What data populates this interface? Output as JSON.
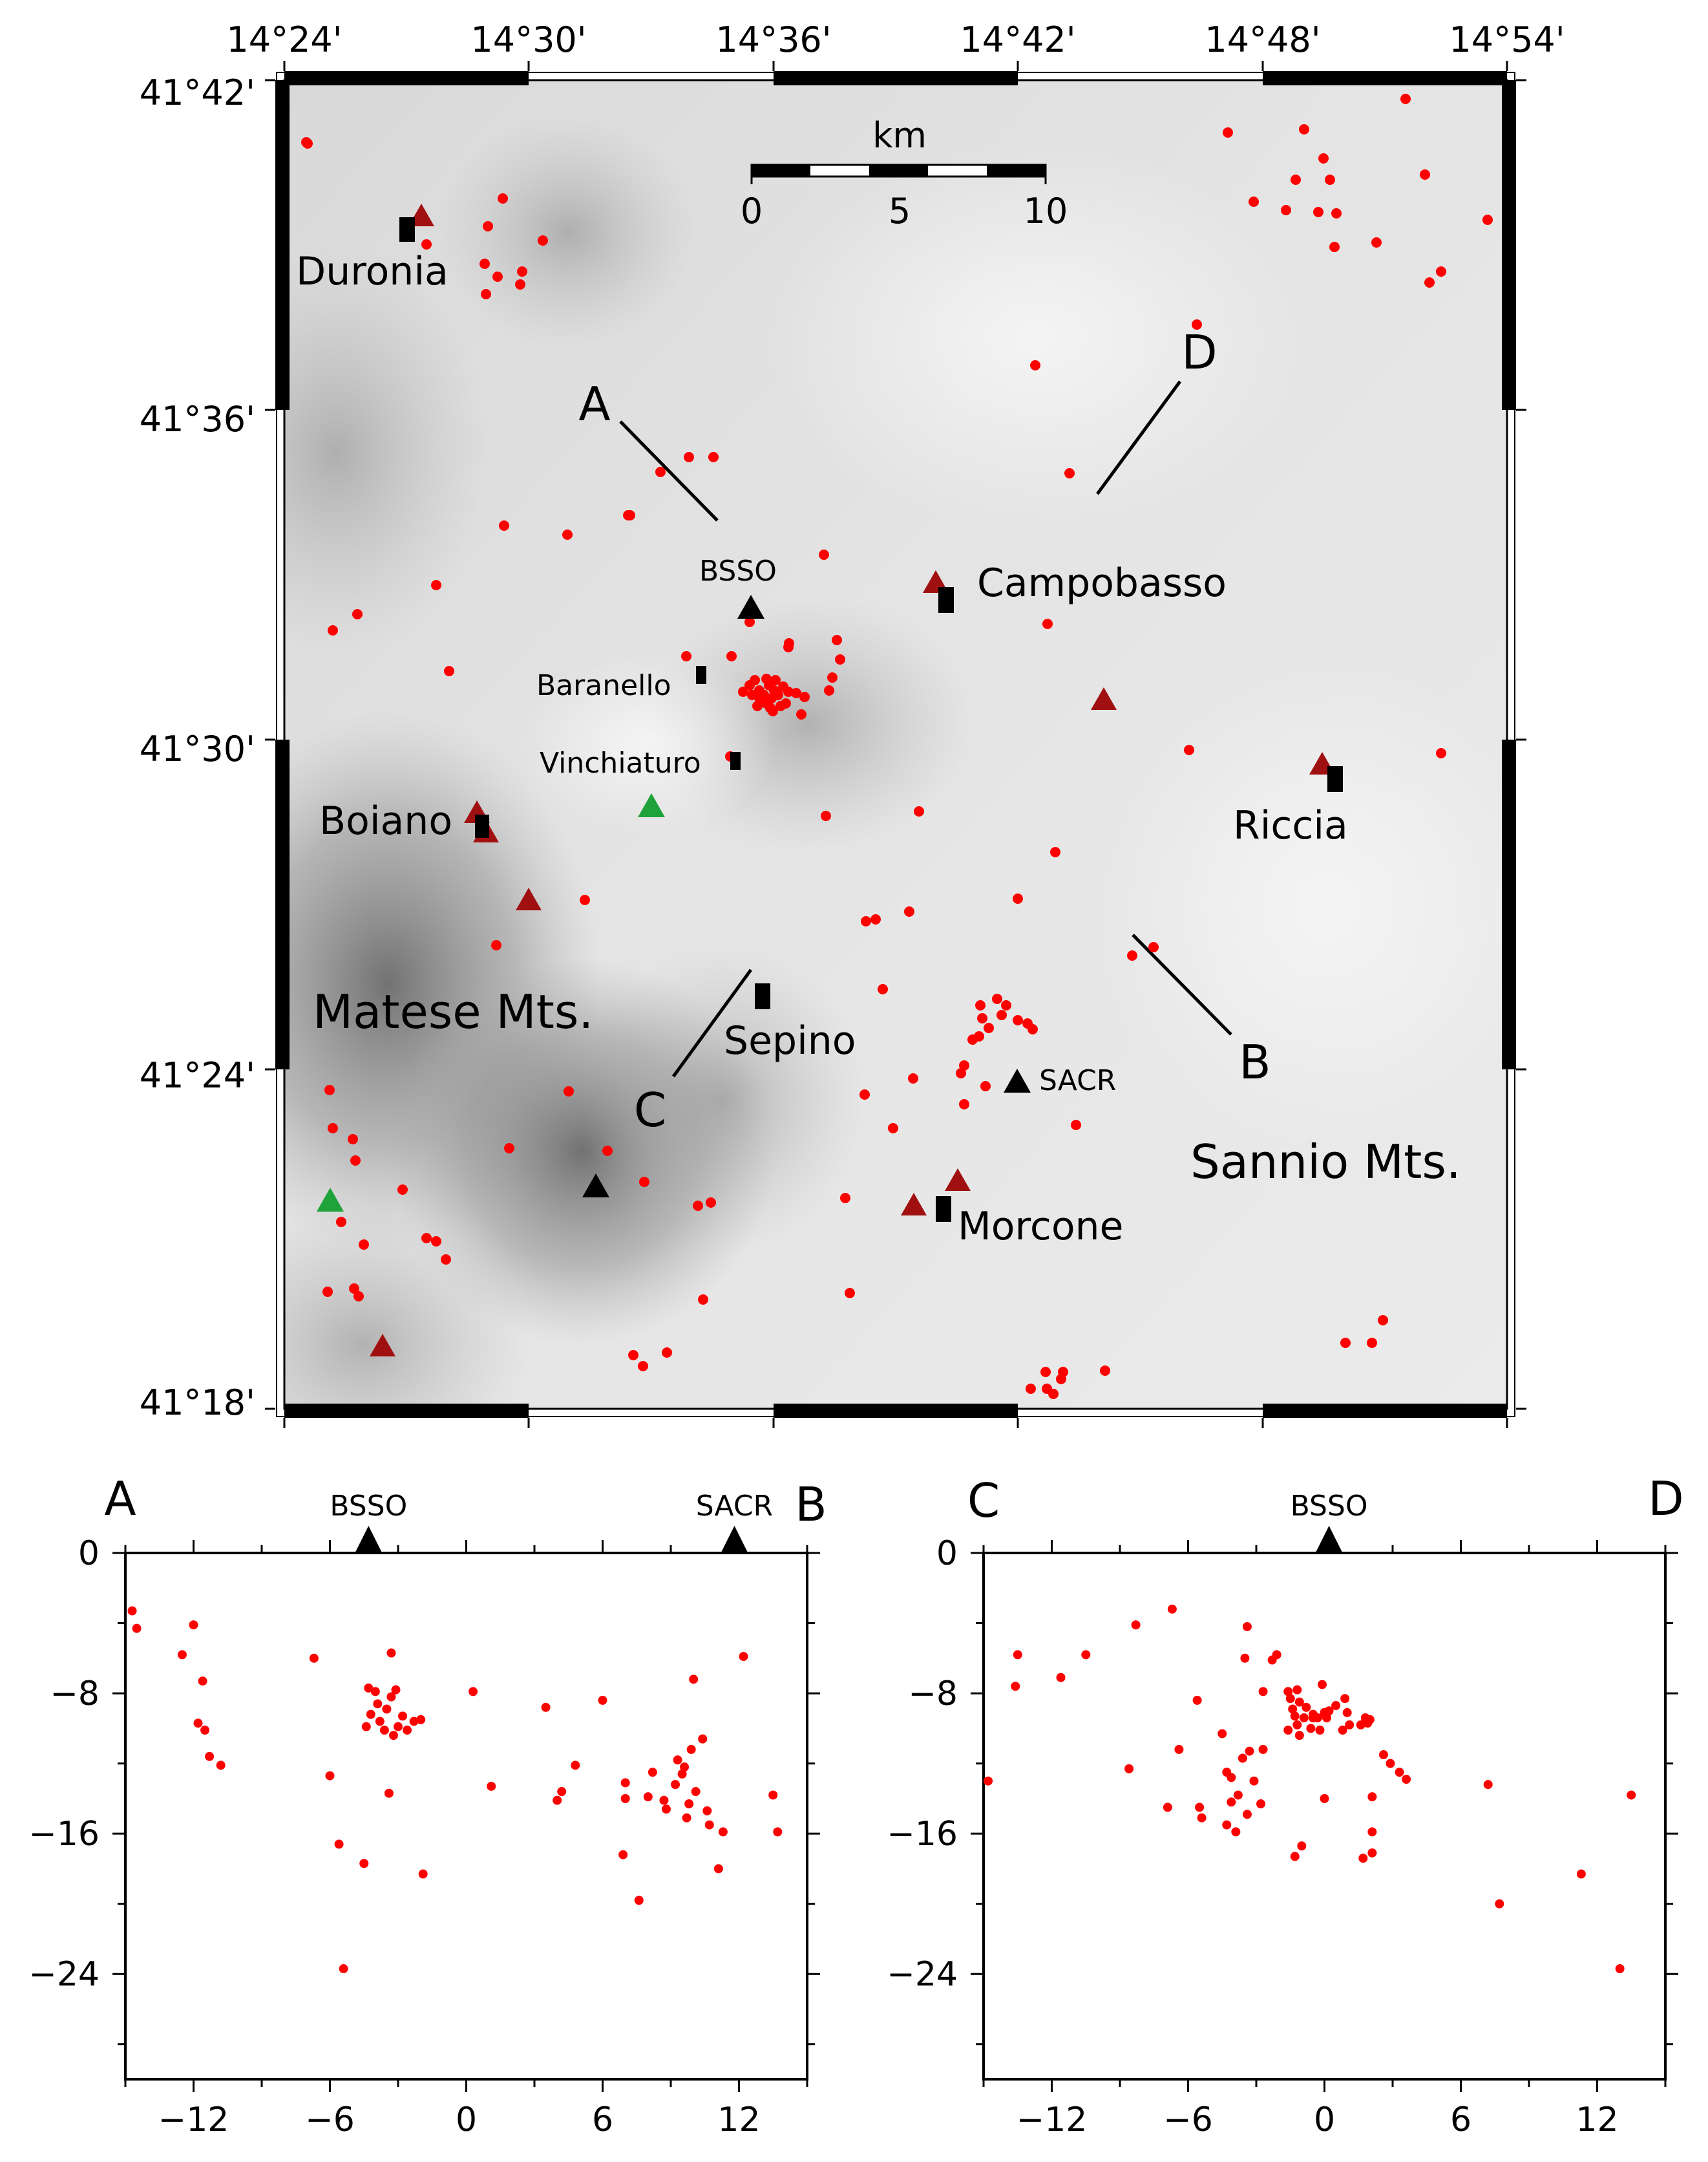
{
  "map": {
    "lon_labels": [
      "14°24'",
      "14°30'",
      "14°36'",
      "14°42'",
      "14°48'",
      "14°54'"
    ],
    "lat_labels": [
      "41°42'",
      "41°36'",
      "41°30'",
      "41°24'",
      "41°18'"
    ],
    "scalebar": {
      "unit": "km",
      "ticks": [
        "0",
        "5",
        "10"
      ]
    },
    "towns": [
      "Duronia",
      "Campobasso",
      "Baranello",
      "Vinchiaturo",
      "Boiano",
      "Riccia",
      "Sepino",
      "Morcone"
    ],
    "regions": [
      "Matese Mts.",
      "Sannio Mts."
    ],
    "stations": [
      "BSSO",
      "SACR"
    ],
    "profile_endpoints": [
      "A",
      "B",
      "C",
      "D"
    ],
    "colors": {
      "epicenter": "#ff0000",
      "station_black": "#000000",
      "station_red": "#a01010",
      "station_green": "#1fa23a",
      "terrain_low": "#f0f0f0",
      "terrain_high": "#5a5a5a"
    }
  },
  "chart_data": [
    {
      "type": "scatter",
      "name": "A-B cross-section",
      "end_labels": [
        "A",
        "B"
      ],
      "stations": [
        {
          "label": "BSSO",
          "x": -4.3
        },
        {
          "label": "SACR",
          "x": 11.8
        }
      ],
      "xlim": [
        -15,
        15
      ],
      "ylim": [
        -30,
        0
      ],
      "xticks": [
        "−12",
        "−6",
        "0",
        "6",
        "12"
      ],
      "yticks": [
        "0",
        "−8",
        "−16",
        "−24"
      ],
      "points": [
        [
          -14.7,
          -3.3
        ],
        [
          -14.5,
          -4.3
        ],
        [
          -12.5,
          -5.8
        ],
        [
          -12.0,
          -4.1
        ],
        [
          -11.8,
          -9.7
        ],
        [
          -11.6,
          -7.3
        ],
        [
          -11.5,
          -10.1
        ],
        [
          -11.3,
          -11.6
        ],
        [
          -10.8,
          -12.1
        ],
        [
          -6.7,
          -6.0
        ],
        [
          -6.0,
          -12.7
        ],
        [
          -5.6,
          -16.6
        ],
        [
          -5.4,
          -23.7
        ],
        [
          -4.5,
          -17.7
        ],
        [
          -4.4,
          -9.9
        ],
        [
          -4.3,
          -7.7
        ],
        [
          -4.2,
          -9.2
        ],
        [
          -4.0,
          -7.9
        ],
        [
          -3.9,
          -8.6
        ],
        [
          -3.8,
          -9.6
        ],
        [
          -3.6,
          -10.1
        ],
        [
          -3.5,
          -8.9
        ],
        [
          -3.4,
          -13.7
        ],
        [
          -3.3,
          -8.2
        ],
        [
          -3.2,
          -10.4
        ],
        [
          -3.1,
          -7.8
        ],
        [
          -3.0,
          -9.9
        ],
        [
          -2.8,
          -9.3
        ],
        [
          -2.6,
          -10.1
        ],
        [
          -2.3,
          -9.6
        ],
        [
          -2.0,
          -9.5
        ],
        [
          -1.9,
          -18.3
        ],
        [
          -3.3,
          -5.7
        ],
        [
          0.3,
          -7.9
        ],
        [
          1.1,
          -13.3
        ],
        [
          3.5,
          -8.8
        ],
        [
          4.0,
          -14.1
        ],
        [
          4.2,
          -13.6
        ],
        [
          4.8,
          -12.1
        ],
        [
          6.0,
          -8.4
        ],
        [
          6.9,
          -17.2
        ],
        [
          7.0,
          -13.1
        ],
        [
          7.0,
          -14.0
        ],
        [
          7.6,
          -19.8
        ],
        [
          8.0,
          -13.9
        ],
        [
          8.2,
          -12.5
        ],
        [
          8.7,
          -14.1
        ],
        [
          8.8,
          -14.6
        ],
        [
          9.2,
          -13.2
        ],
        [
          9.3,
          -11.8
        ],
        [
          9.5,
          -12.6
        ],
        [
          9.6,
          -12.2
        ],
        [
          9.7,
          -15.1
        ],
        [
          9.8,
          -14.3
        ],
        [
          9.9,
          -11.2
        ],
        [
          10.0,
          -7.2
        ],
        [
          10.1,
          -13.6
        ],
        [
          10.4,
          -10.6
        ],
        [
          10.6,
          -14.7
        ],
        [
          10.7,
          -15.5
        ],
        [
          11.1,
          -18.0
        ],
        [
          11.3,
          -15.9
        ],
        [
          12.2,
          -5.9
        ],
        [
          13.5,
          -13.8
        ],
        [
          13.7,
          -15.9
        ]
      ]
    },
    {
      "type": "scatter",
      "name": "C-D cross-section",
      "end_labels": [
        "C",
        "D"
      ],
      "stations": [
        {
          "label": "BSSO",
          "x": 0.2
        }
      ],
      "xlim": [
        -15,
        15
      ],
      "ylim": [
        -30,
        0
      ],
      "xticks": [
        "−12",
        "−6",
        "0",
        "6",
        "12"
      ],
      "yticks": [
        "0",
        "−8",
        "−16",
        "−24"
      ],
      "points": [
        [
          -14.8,
          -13.0
        ],
        [
          -13.6,
          -7.6
        ],
        [
          -13.5,
          -5.8
        ],
        [
          -11.6,
          -7.1
        ],
        [
          -10.5,
          -5.8
        ],
        [
          -8.6,
          -12.3
        ],
        [
          -8.3,
          -4.1
        ],
        [
          -6.9,
          -14.5
        ],
        [
          -6.7,
          -3.2
        ],
        [
          -6.4,
          -11.2
        ],
        [
          -5.6,
          -8.4
        ],
        [
          -5.5,
          -14.5
        ],
        [
          -5.4,
          -15.1
        ],
        [
          -4.5,
          -10.3
        ],
        [
          -4.3,
          -15.5
        ],
        [
          -4.3,
          -12.5
        ],
        [
          -4.1,
          -14.2
        ],
        [
          -4.1,
          -12.8
        ],
        [
          -3.9,
          -15.9
        ],
        [
          -3.8,
          -13.8
        ],
        [
          -3.6,
          -11.7
        ],
        [
          -3.5,
          -6.0
        ],
        [
          -3.4,
          -4.2
        ],
        [
          -3.4,
          -14.9
        ],
        [
          -3.3,
          -11.3
        ],
        [
          -3.1,
          -13.0
        ],
        [
          -2.8,
          -14.3
        ],
        [
          -2.7,
          -11.2
        ],
        [
          -2.7,
          -7.9
        ],
        [
          -2.3,
          -6.1
        ],
        [
          -2.1,
          -5.8
        ],
        [
          -1.6,
          -7.9
        ],
        [
          -1.6,
          -10.1
        ],
        [
          -1.5,
          -8.3
        ],
        [
          -1.4,
          -8.9
        ],
        [
          -1.3,
          -9.3
        ],
        [
          -1.3,
          -17.3
        ],
        [
          -1.2,
          -9.8
        ],
        [
          -1.2,
          -7.8
        ],
        [
          -1.1,
          -10.4
        ],
        [
          -1.1,
          -8.5
        ],
        [
          -1.0,
          -16.7
        ],
        [
          -0.9,
          -9.4
        ],
        [
          -0.8,
          -8.8
        ],
        [
          -0.6,
          -10.0
        ],
        [
          -0.5,
          -9.4
        ],
        [
          -0.5,
          -9.2
        ],
        [
          -0.3,
          -9.4
        ],
        [
          -0.2,
          -10.1
        ],
        [
          -0.1,
          -7.5
        ],
        [
          0.0,
          -9.1
        ],
        [
          0.0,
          -14.0
        ],
        [
          0.1,
          -9.4
        ],
        [
          0.2,
          -9.0
        ],
        [
          0.5,
          -8.7
        ],
        [
          0.8,
          -10.1
        ],
        [
          0.9,
          -8.3
        ],
        [
          1.0,
          -9.1
        ],
        [
          1.1,
          -9.8
        ],
        [
          1.6,
          -9.8
        ],
        [
          1.7,
          -17.4
        ],
        [
          1.8,
          -9.4
        ],
        [
          1.9,
          -9.7
        ],
        [
          2.0,
          -9.5
        ],
        [
          2.1,
          -15.9
        ],
        [
          2.1,
          -13.9
        ],
        [
          2.1,
          -17.1
        ],
        [
          2.6,
          -11.5
        ],
        [
          2.9,
          -12.0
        ],
        [
          3.3,
          -12.5
        ],
        [
          3.6,
          -12.9
        ],
        [
          7.2,
          -13.2
        ],
        [
          7.7,
          -20.0
        ],
        [
          11.3,
          -18.3
        ],
        [
          13.0,
          -23.7
        ],
        [
          13.5,
          -13.8
        ]
      ]
    }
  ]
}
